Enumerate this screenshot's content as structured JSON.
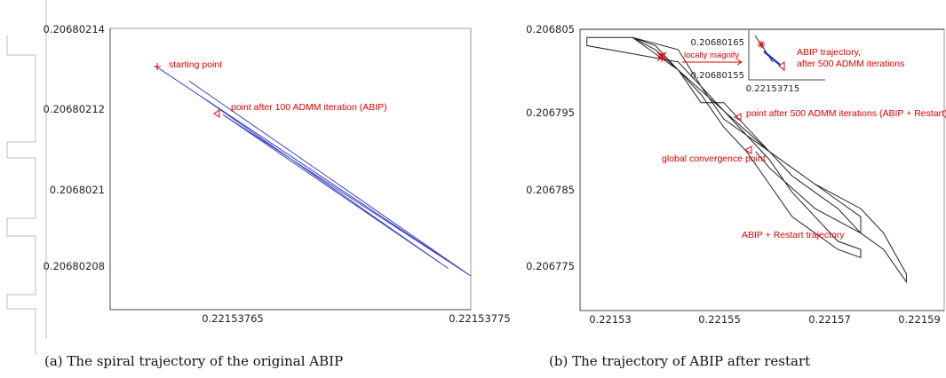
{
  "chart_data": [
    {
      "type": "line",
      "caption": "(a) The spiral trajectory of the original ABIP",
      "x_ticks": [
        "0.22153765",
        "0.22153775"
      ],
      "y_ticks": [
        "0.20680214",
        "0.20680212",
        "0.2068021",
        "0.20680208"
      ],
      "xlim": [
        0.2215376,
        0.22153776
      ],
      "ylim": [
        0.206802065,
        0.20680214
      ],
      "grid": false,
      "trajectory_color": "#3b45c4",
      "annotation_color": "#e00000",
      "series": [
        {
          "points": [
            [
              0.22153762,
              0.20680213
            ],
            [
              0.22153776,
              0.206802074
            ],
            [
              0.22153765,
              0.206802117
            ],
            [
              0.22153775,
              0.206802076
            ],
            [
              0.22153764,
              0.206802122
            ],
            [
              0.22153776,
              0.206802074
            ],
            [
              0.221537635,
              0.206802126
            ]
          ]
        }
      ],
      "annotations": [
        {
          "text": "starting point",
          "x": 0.22153762,
          "y": 0.20680213,
          "marker": "+"
        },
        {
          "text": "point after 100 ADMM iteration (ABIP)",
          "x": 0.221537652,
          "y": 0.206802119,
          "marker": "triangle-left"
        }
      ]
    },
    {
      "type": "line",
      "caption": "(b) The trajectory of ABIP after restart",
      "x_ticks": [
        "0.22153",
        "0.22155",
        "0.22157",
        "0.22159"
      ],
      "y_ticks": [
        "0.206805",
        "0.206795",
        "0.206785",
        "0.206775"
      ],
      "xlim": [
        0.2215185,
        0.2215983
      ],
      "ylim": [
        0.2067705,
        0.206805
      ],
      "grid": false,
      "trajectory_color": "#222222",
      "annotation_color": "#e00000",
      "series": [
        {
          "points": [
            [
              0.22153,
              0.206804
            ],
            [
              0.22154,
              0.2068025
            ],
            [
              0.221545,
              0.206798
            ],
            [
              0.22155,
              0.206795
            ],
            [
              0.221555,
              0.206792
            ],
            [
              0.22156,
              0.20679
            ],
            [
              0.221565,
              0.206787
            ],
            [
              0.22157,
              0.206785
            ],
            [
              0.221575,
              0.206783
            ],
            [
              0.22158,
              0.20678
            ],
            [
              0.22158,
              0.206782
            ],
            [
              0.221575,
              0.206784
            ],
            [
              0.22157,
              0.206786
            ],
            [
              0.221565,
              0.206788
            ],
            [
              0.22156,
              0.20679
            ],
            [
              0.221555,
              0.206793
            ],
            [
              0.22155,
              0.206796
            ],
            [
              0.221545,
              0.206796
            ],
            [
              0.22154,
              0.2068
            ],
            [
              0.221535,
              0.206802
            ],
            [
              0.22153,
              0.206804
            ],
            [
              0.22152,
              0.206804
            ],
            [
              0.22152,
              0.206803
            ],
            [
              0.22153,
              0.206802
            ],
            [
              0.22154,
              0.206801
            ],
            [
              0.221545,
              0.206798
            ],
            [
              0.22155,
              0.206794
            ],
            [
              0.221555,
              0.206792
            ],
            [
              0.22156,
              0.206789
            ],
            [
              0.221565,
              0.206785
            ],
            [
              0.22157,
              0.206782
            ],
            [
              0.221575,
              0.206779
            ],
            [
              0.22158,
              0.206778
            ],
            [
              0.22158,
              0.206777
            ],
            [
              0.221575,
              0.206778
            ],
            [
              0.22157,
              0.20678
            ],
            [
              0.221565,
              0.206782
            ],
            [
              0.22156,
              0.206786
            ],
            [
              0.221555,
              0.20679
            ],
            [
              0.22155,
              0.206793
            ],
            [
              0.221545,
              0.206797
            ],
            [
              0.22154,
              0.2068
            ],
            [
              0.221535,
              0.2068025
            ],
            [
              0.22153,
              0.206804
            ],
            [
              0.221535,
              0.206803
            ],
            [
              0.22154,
              0.2068
            ],
            [
              0.22155,
              0.206795
            ],
            [
              0.22156,
              0.20679
            ],
            [
              0.22157,
              0.206786
            ],
            [
              0.22158,
              0.206783
            ],
            [
              0.221585,
              0.20678
            ],
            [
              0.22159,
              0.206775
            ],
            [
              0.22159,
              0.206774
            ],
            [
              0.221585,
              0.206778
            ],
            [
              0.22158,
              0.20678
            ],
            [
              0.22157,
              0.206783
            ],
            [
              0.22156,
              0.206788
            ],
            [
              0.221557,
              0.20679
            ]
          ]
        }
      ],
      "annotations": [
        {
          "text": "point after 500 ADMM iterations (ABIP + Restart)",
          "x": 0.221553,
          "y": 0.206794,
          "marker": "triangle-left"
        },
        {
          "text": "global convergence point",
          "x": 0.221557,
          "y": 0.20679,
          "marker": "triangle-left"
        },
        {
          "text": "ABIP + Restart trajectory",
          "x": 0.22157,
          "y": 0.20678,
          "marker": "none"
        }
      ],
      "inset": {
        "note": "locally magnify",
        "x_ticks": [
          "0.22153715"
        ],
        "y_ticks": [
          "0.20680165",
          "0.20680155"
        ],
        "series_color": "#1a2bd6",
        "label": [
          "ABIP trajectory,",
          "after 500 ADMM iterations"
        ],
        "segment": [
          [
            0.22153712,
            0.20680166
          ],
          [
            0.22153717,
            0.20680158
          ]
        ]
      }
    }
  ]
}
